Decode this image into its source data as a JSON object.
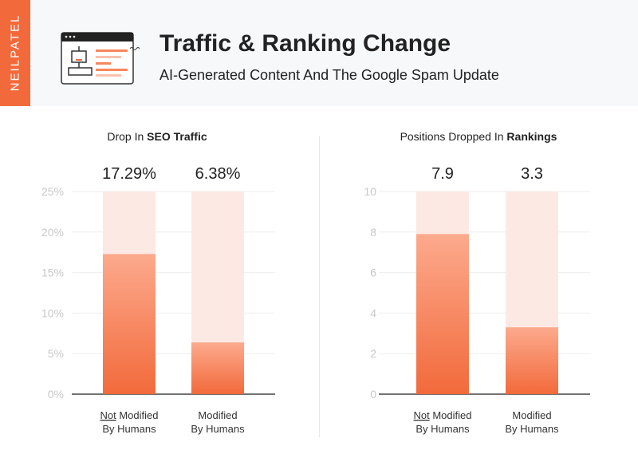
{
  "brand": "NEILPATEL",
  "header": {
    "title": "Traffic & Ranking Change",
    "subtitle": "AI-Generated Content And The Google Spam Update",
    "icon": "robot-browser-icon"
  },
  "colors": {
    "accent": "#f26a3b",
    "bar_light": "#fde9e3",
    "bar_top": "#fcaa8d"
  },
  "chart_data": [
    {
      "type": "bar",
      "title": "Drop In SEO Traffic",
      "title_plain": "Drop In ",
      "title_bold": "SEO Traffic",
      "categories": [
        {
          "pre": "Not",
          "post": " Modified",
          "line2": "By Humans"
        },
        {
          "pre": "",
          "post": "Modified",
          "line2": "By Humans"
        }
      ],
      "values": [
        17.29,
        6.38
      ],
      "data_labels": [
        "17.29%",
        "6.38%"
      ],
      "ylim": [
        0,
        25
      ],
      "yticks": [
        0,
        5,
        10,
        15,
        20,
        25
      ],
      "ytick_labels": [
        "0%",
        "5%",
        "10%",
        "15%",
        "20%",
        "25%"
      ],
      "grid": true
    },
    {
      "type": "bar",
      "title": "Positions Dropped In Rankings",
      "title_plain": "Positions Dropped In ",
      "title_bold": "Rankings",
      "categories": [
        {
          "pre": "Not",
          "post": " Modified",
          "line2": "By Humans"
        },
        {
          "pre": "",
          "post": "Modified",
          "line2": "By Humans"
        }
      ],
      "values": [
        7.9,
        3.3
      ],
      "data_labels": [
        "7.9",
        "3.3"
      ],
      "ylim": [
        0,
        10
      ],
      "yticks": [
        0,
        2,
        4,
        6,
        8,
        10
      ],
      "ytick_labels": [
        "0",
        "2",
        "4",
        "6",
        "8",
        "10"
      ],
      "grid": true
    }
  ]
}
